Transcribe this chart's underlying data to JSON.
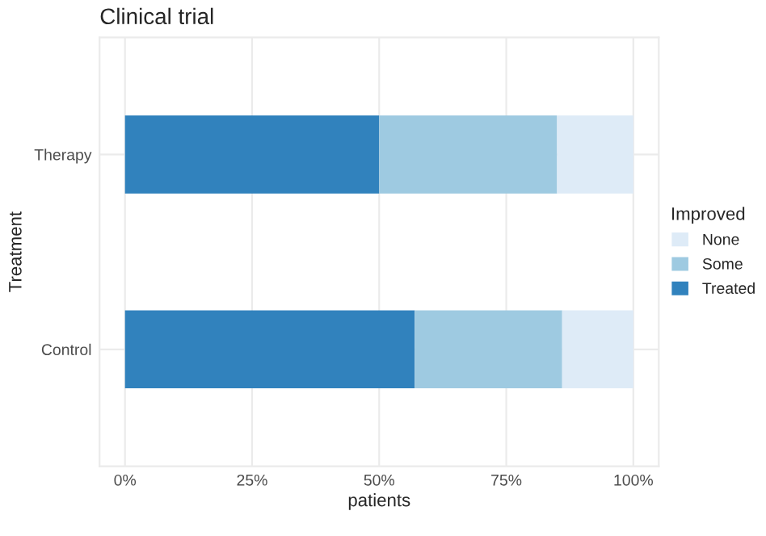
{
  "chart_data": {
    "type": "bar",
    "orientation": "horizontal",
    "stacked": true,
    "title": "Clinical trial",
    "xlabel": "patients",
    "ylabel": "Treatment",
    "legend_title": "Improved",
    "legend": "right",
    "categories": [
      "Therapy",
      "Control"
    ],
    "series": [
      {
        "name": "Treated",
        "color": "#3182bd",
        "values": [
          0.5,
          0.57
        ]
      },
      {
        "name": "Some",
        "color": "#9ecae1",
        "values": [
          0.35,
          0.29
        ]
      },
      {
        "name": "None",
        "color": "#deebf7",
        "values": [
          0.15,
          0.14
        ]
      }
    ],
    "xlim": [
      -0.05,
      1.05
    ],
    "xticks": [
      {
        "value": 0,
        "label": "0%"
      },
      {
        "value": 0.25,
        "label": "25%"
      },
      {
        "value": 0.5,
        "label": "50%"
      },
      {
        "value": 0.75,
        "label": "75%"
      },
      {
        "value": 1,
        "label": "100%"
      }
    ],
    "grid": true
  }
}
